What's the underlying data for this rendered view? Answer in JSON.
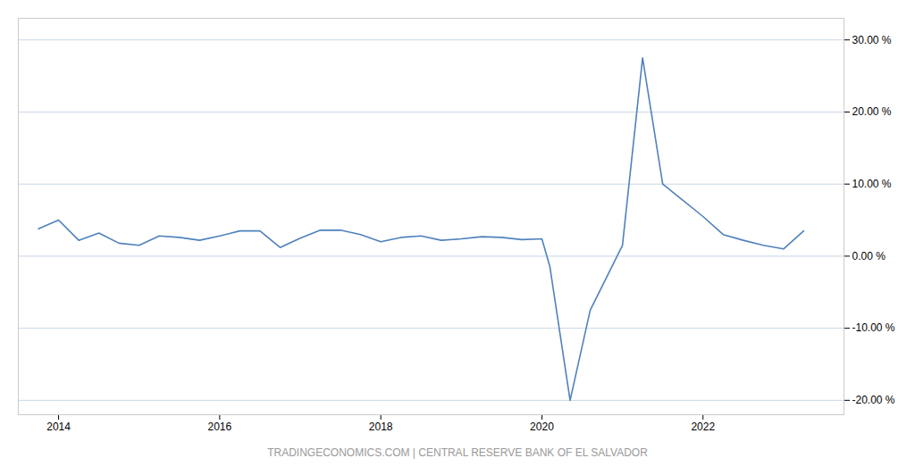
{
  "chart_data": {
    "type": "line",
    "x": [
      2013.75,
      2014.0,
      2014.25,
      2014.5,
      2014.75,
      2015.0,
      2015.25,
      2015.5,
      2015.75,
      2016.0,
      2016.25,
      2016.5,
      2016.75,
      2017.0,
      2017.25,
      2017.5,
      2017.75,
      2018.0,
      2018.25,
      2018.5,
      2018.75,
      2019.0,
      2019.25,
      2019.5,
      2019.75,
      2020.0,
      2020.1,
      2020.35,
      2020.6,
      2021.0,
      2021.25,
      2021.5,
      2022.0,
      2022.25,
      2022.5,
      2022.75,
      2023.0,
      2023.25
    ],
    "values": [
      3.8,
      5.0,
      2.2,
      3.2,
      1.8,
      1.5,
      2.8,
      2.6,
      2.2,
      2.8,
      3.5,
      3.5,
      1.2,
      2.5,
      3.6,
      3.6,
      3.0,
      2.0,
      2.6,
      2.8,
      2.2,
      2.4,
      2.7,
      2.6,
      2.3,
      2.4,
      -1.5,
      -20.0,
      -7.5,
      1.5,
      27.5,
      10.0,
      5.5,
      3.0,
      2.2,
      1.5,
      1.0,
      3.5
    ],
    "color": "#4f81bd",
    "xlim": [
      2013.5,
      2023.75
    ],
    "xticks": [
      2014,
      2016,
      2018,
      2020,
      2022
    ],
    "ylim": [
      -22,
      33
    ],
    "yticks": [
      {
        "value": -20,
        "label": "-20.00 %"
      },
      {
        "value": -10,
        "label": "-10.00 %"
      },
      {
        "value": 0,
        "label": "0.00 %"
      },
      {
        "value": 10,
        "label": "10.00 %"
      },
      {
        "value": 20,
        "label": "20.00 %"
      },
      {
        "value": 30,
        "label": "30.00 %"
      }
    ],
    "grid": "y",
    "annotations": [
      "TRADINGECONOMICS.COM | CENTRAL RESERVE BANK OF EL SALVADOR"
    ]
  }
}
